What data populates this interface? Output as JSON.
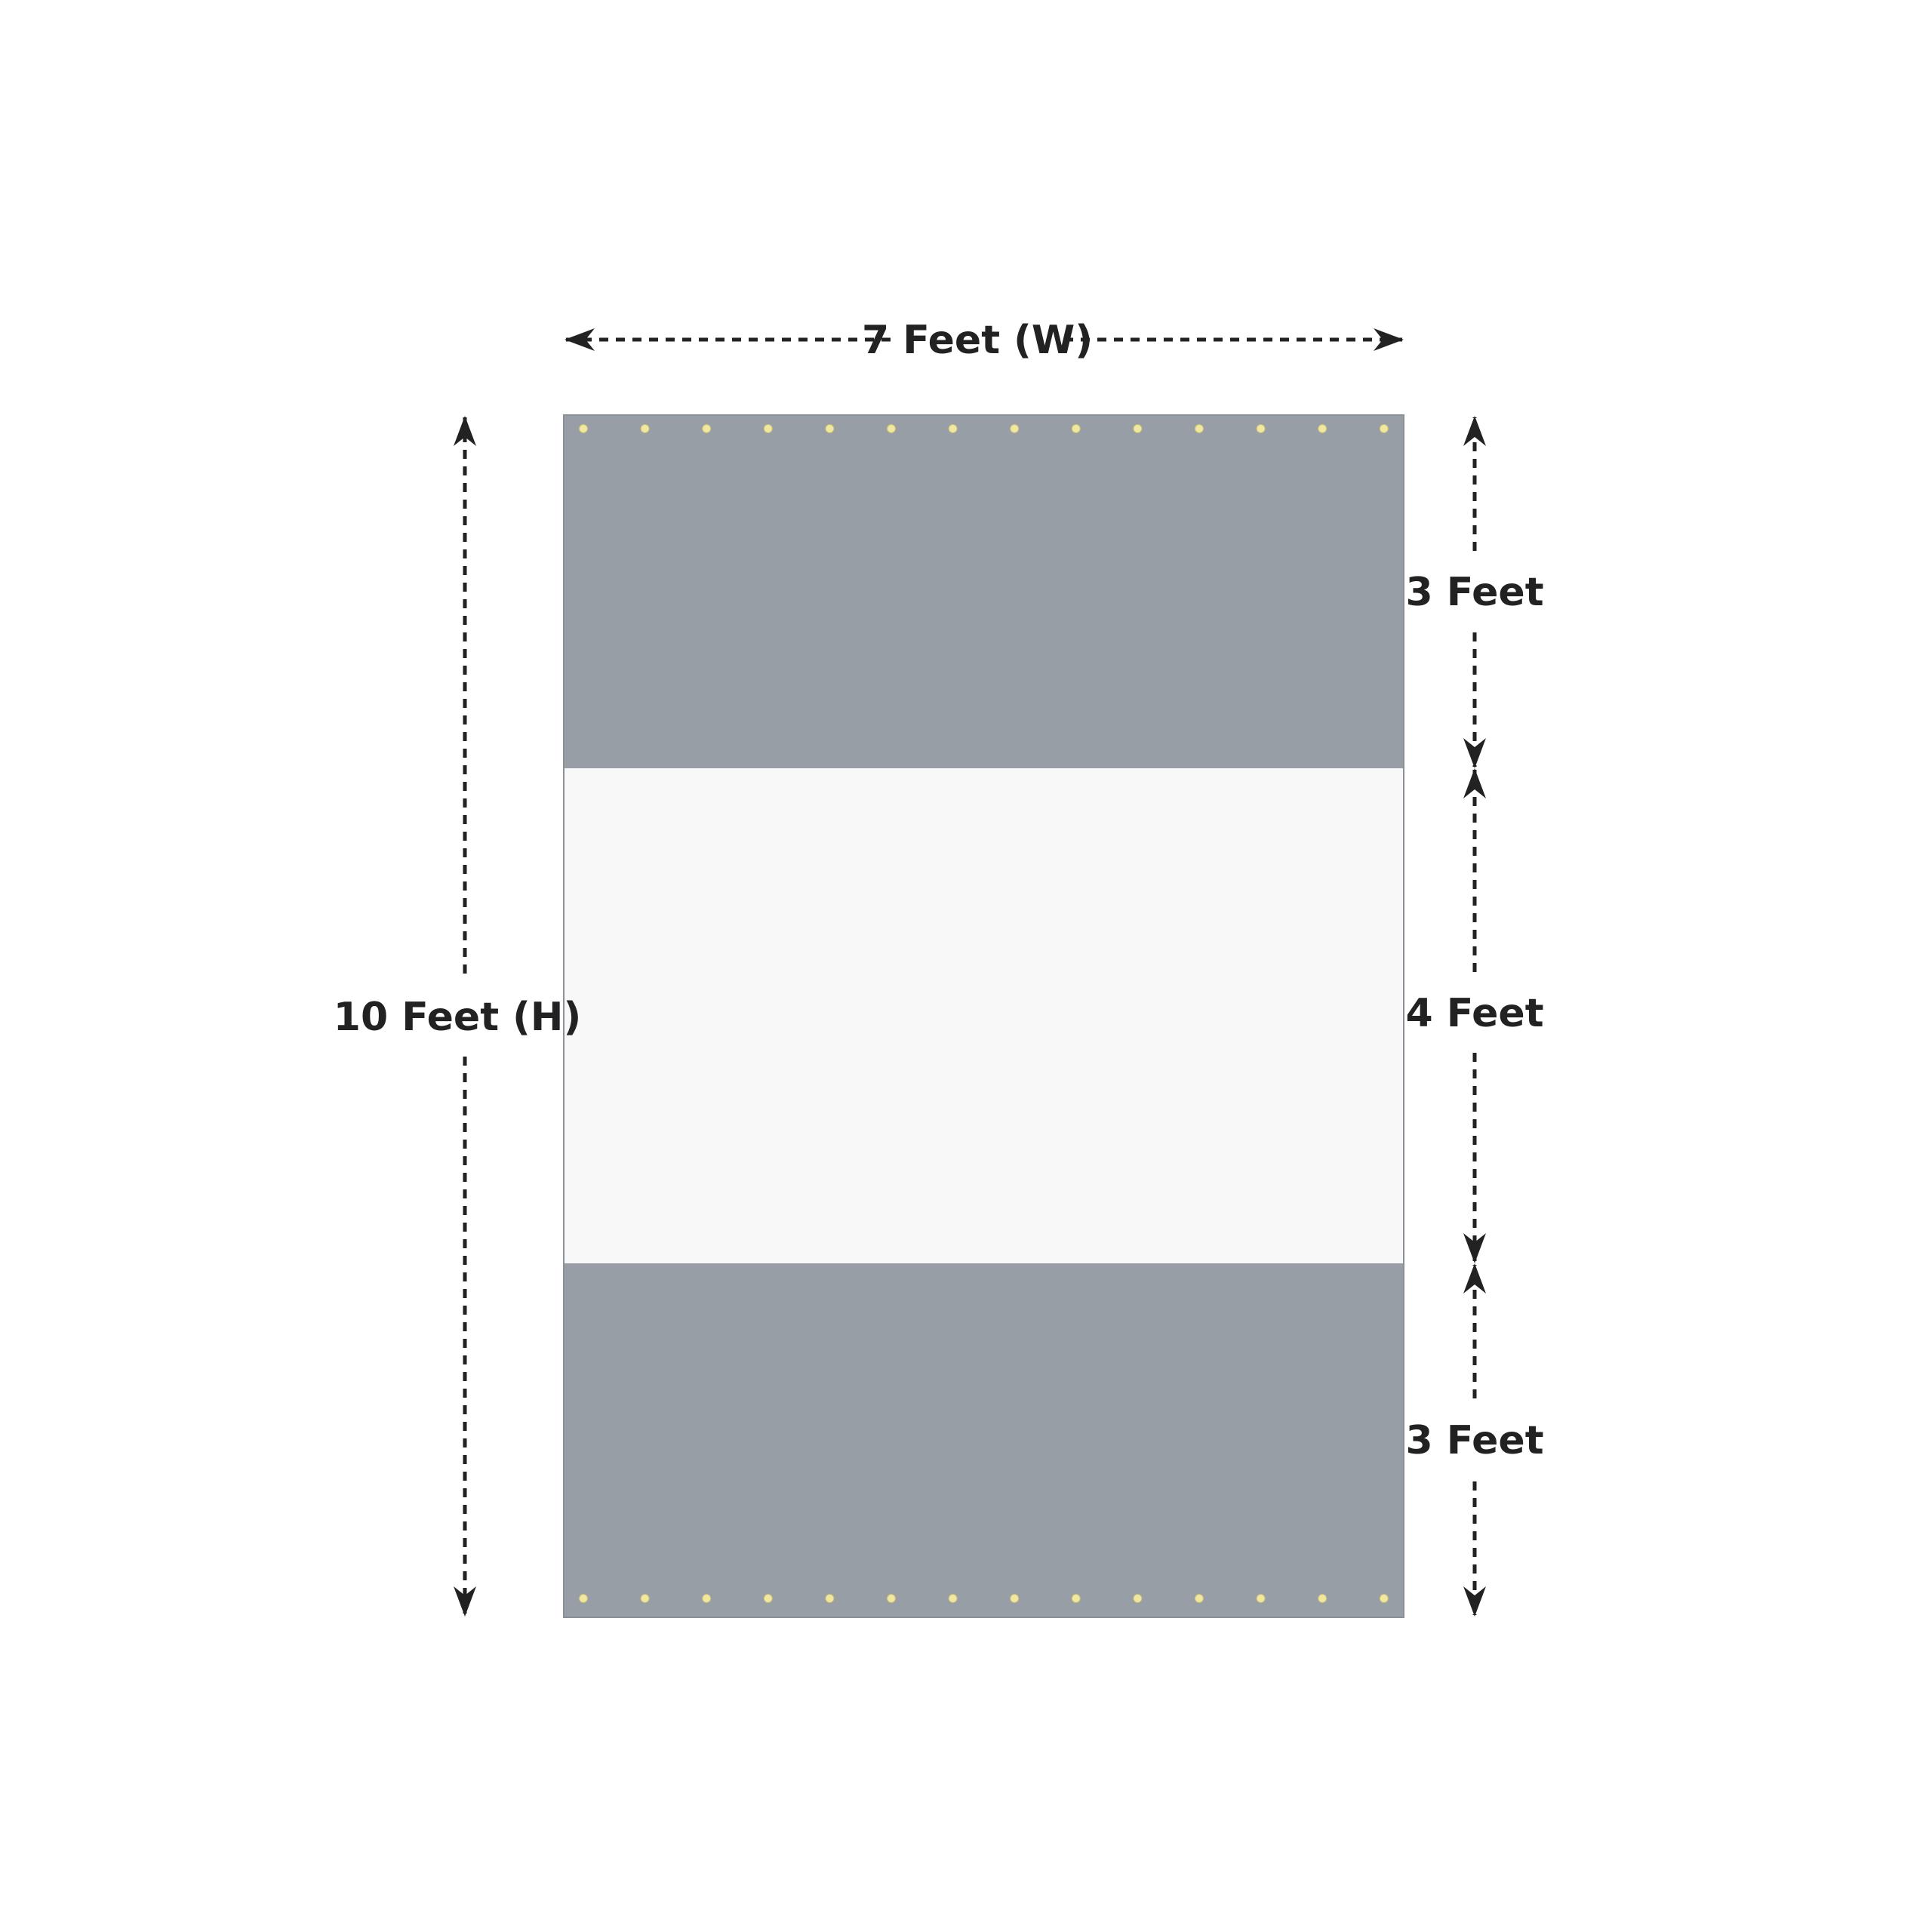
{
  "labels": {
    "width": "7 Feet (W)",
    "height": "10 Feet (H)",
    "top_section": "3 Feet",
    "middle_section": "4 Feet",
    "bottom_section": "3 Feet"
  },
  "panel": {
    "sections_feet": [
      3,
      4,
      3
    ],
    "total_height_feet": 10,
    "width_feet": 7,
    "eyelets_per_edge": 14
  },
  "colors": {
    "grey_band": "#979ea5",
    "clear_band": "#f8f8f8",
    "eyelet": "#f2e7a0",
    "dimension_line": "#222222"
  }
}
